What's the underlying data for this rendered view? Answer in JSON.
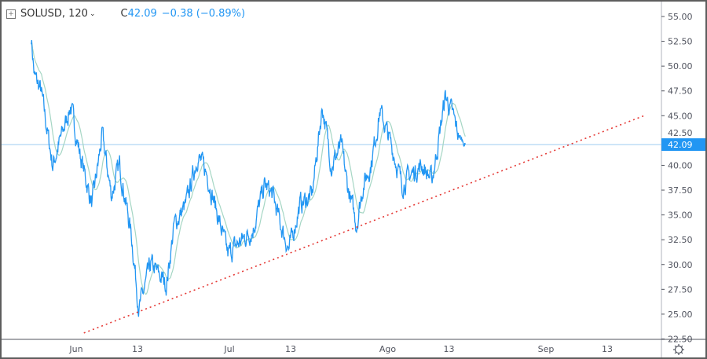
{
  "header": {
    "symbol_interval": "SOLUSD, 120",
    "close_prefix": "C",
    "close": "42.09",
    "change": "−0.38 (−0.89%)"
  },
  "colors": {
    "price": "#2196f3",
    "ma": "#a5d6c4",
    "trend": "#e53935",
    "last_line": "#9ccbf0",
    "axis": "#b2b5be"
  },
  "chart_data": {
    "type": "line",
    "title": "SOLUSD, 120",
    "x_unit": "days since Jun 1",
    "ylim": [
      22.5,
      55
    ],
    "y_ticks": [
      "55.00",
      "52.50",
      "50.00",
      "47.50",
      "45.00",
      "42.50",
      "40.00",
      "37.50",
      "35.00",
      "32.50",
      "30.00",
      "27.50",
      "25.00",
      "22.50"
    ],
    "x_ticks": [
      {
        "label": "Jun",
        "day": 0
      },
      {
        "label": "13",
        "day": 12
      },
      {
        "label": "Jul",
        "day": 30
      },
      {
        "label": "13",
        "day": 42
      },
      {
        "label": "Ago",
        "day": 61
      },
      {
        "label": "13",
        "day": 73
      },
      {
        "label": "Sep",
        "day": 92
      },
      {
        "label": "13",
        "day": 104
      }
    ],
    "xlim": [
      -14.6,
      115
    ],
    "last_price": 42.09,
    "last_price_label": "42.09",
    "price_keypoints": [
      [
        -8.8,
        53
      ],
      [
        -8.2,
        49
      ],
      [
        -6.9,
        47.5
      ],
      [
        -4.6,
        40
      ],
      [
        -1.1,
        46
      ],
      [
        0.8,
        41
      ],
      [
        3.1,
        36
      ],
      [
        5.1,
        43
      ],
      [
        6.9,
        37
      ],
      [
        8.5,
        40
      ],
      [
        10.8,
        33
      ],
      [
        12.3,
        25.5
      ],
      [
        14.6,
        30
      ],
      [
        17.7,
        28
      ],
      [
        19.2,
        34
      ],
      [
        21.5,
        36
      ],
      [
        23.8,
        41
      ],
      [
        25.7,
        39
      ],
      [
        27.7,
        35
      ],
      [
        29.7,
        31
      ],
      [
        31.5,
        32
      ],
      [
        34.6,
        33.5
      ],
      [
        36.9,
        38
      ],
      [
        38.5,
        37
      ],
      [
        40,
        34
      ],
      [
        41.7,
        31.5
      ],
      [
        43.8,
        36
      ],
      [
        46.2,
        37
      ],
      [
        48.2,
        46
      ],
      [
        50,
        40
      ],
      [
        51.9,
        42
      ],
      [
        53.1,
        38
      ],
      [
        54.9,
        34
      ],
      [
        56.2,
        38
      ],
      [
        57.7,
        40
      ],
      [
        59.5,
        45.5
      ],
      [
        61.1,
        43
      ],
      [
        62.3,
        41
      ],
      [
        63.8,
        38
      ],
      [
        65.4,
        39
      ],
      [
        67.7,
        40
      ],
      [
        69.7,
        38.5
      ],
      [
        70.8,
        42
      ],
      [
        72.3,
        47
      ],
      [
        73.8,
        45
      ],
      [
        74.9,
        43
      ],
      [
        76.2,
        42.09
      ]
    ],
    "trendline": [
      [
        1.5,
        23.1
      ],
      [
        111.2,
        45.0
      ]
    ],
    "series": [
      {
        "name": "SOLUSD"
      },
      {
        "name": "Moving average"
      }
    ]
  }
}
